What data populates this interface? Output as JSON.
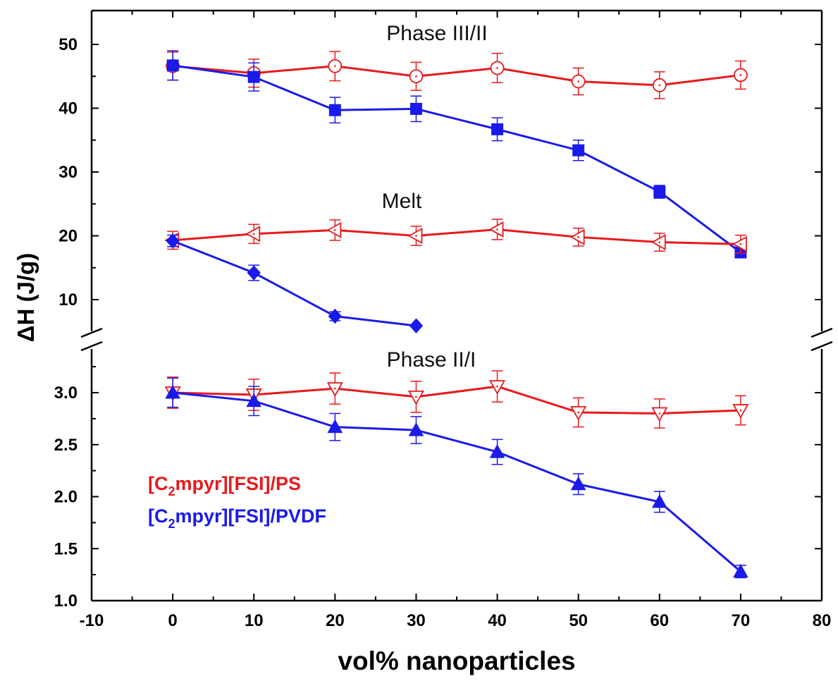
{
  "chart_data": {
    "type": "line",
    "xlabel": "vol% nanoparticles",
    "ylabel": "ΔH (J/g)",
    "xlim": [
      -10,
      80
    ],
    "x_ticks": [
      "-10",
      "0",
      "10",
      "20",
      "30",
      "40",
      "50",
      "60",
      "70",
      "80"
    ],
    "y_upper_range": [
      5,
      55
    ],
    "y_upper_ticks": [
      "10",
      "20",
      "30",
      "40",
      "50"
    ],
    "y_lower_range": [
      1.0,
      3.4
    ],
    "y_lower_ticks": [
      "1.0",
      "1.5",
      "2.0",
      "2.5",
      "3.0"
    ],
    "axis_break": true,
    "annotations": [
      "Phase III/II",
      "Melt",
      "Phase II/I"
    ],
    "legend": {
      "placement": "left-center",
      "entries": [
        {
          "prefix": "[C",
          "sub": "2",
          "suffix": "mpyr][FSI]/PS",
          "color": "#e8191c"
        },
        {
          "prefix": "[C",
          "sub": "2",
          "suffix": "mpyr][FSI]/PVDF",
          "color": "#1a1aeb"
        }
      ]
    },
    "series": [
      {
        "group": "Phase III/II",
        "material": "PS",
        "color": "#e8191c",
        "marker": "circle-open",
        "panel": "upper",
        "x": [
          0,
          10,
          20,
          30,
          40,
          50,
          60,
          70
        ],
        "y": [
          46.6,
          45.5,
          46.6,
          45.0,
          46.3,
          44.2,
          43.6,
          45.2
        ],
        "err": [
          2.2,
          2.2,
          2.3,
          2.2,
          2.3,
          2.1,
          2.1,
          2.2
        ]
      },
      {
        "group": "Phase III/II",
        "material": "PVDF",
        "color": "#1a1aeb",
        "marker": "square-filled",
        "panel": "upper",
        "x": [
          0,
          10,
          20,
          30,
          40,
          50,
          60,
          70
        ],
        "y": [
          46.7,
          44.9,
          39.7,
          39.9,
          36.7,
          33.4,
          26.9,
          17.4
        ],
        "err": [
          2.3,
          2.2,
          2.0,
          2.0,
          1.8,
          1.6,
          1.0,
          0.6
        ]
      },
      {
        "group": "Melt",
        "material": "PS",
        "color": "#e8191c",
        "marker": "triangle-left-open",
        "panel": "upper",
        "x": [
          0,
          10,
          20,
          30,
          40,
          50,
          60,
          70
        ],
        "y": [
          19.3,
          20.3,
          20.9,
          20.0,
          21.0,
          19.8,
          19.0,
          18.7
        ],
        "err": [
          1.4,
          1.5,
          1.6,
          1.5,
          1.6,
          1.4,
          1.4,
          1.4
        ]
      },
      {
        "group": "Melt",
        "material": "PVDF",
        "color": "#1a1aeb",
        "marker": "diamond-filled",
        "panel": "upper",
        "x": [
          0,
          10,
          20,
          30
        ],
        "y": [
          19.2,
          14.2,
          7.4,
          5.9
        ],
        "err": [
          0.9,
          1.2,
          0.7,
          0.0
        ]
      },
      {
        "group": "Phase II/I",
        "material": "PS",
        "color": "#e8191c",
        "marker": "triangle-down-open",
        "panel": "lower",
        "x": [
          0,
          10,
          20,
          30,
          40,
          50,
          60,
          70
        ],
        "y": [
          3.0,
          2.98,
          3.04,
          2.96,
          3.06,
          2.81,
          2.8,
          2.83
        ],
        "err": [
          0.15,
          0.15,
          0.15,
          0.15,
          0.15,
          0.14,
          0.14,
          0.14
        ]
      },
      {
        "group": "Phase II/I",
        "material": "PVDF",
        "color": "#1a1aeb",
        "marker": "triangle-up-filled",
        "panel": "lower",
        "x": [
          0,
          10,
          20,
          30,
          40,
          50,
          60,
          70
        ],
        "y": [
          3.0,
          2.92,
          2.67,
          2.64,
          2.43,
          2.12,
          1.95,
          1.28
        ],
        "err": [
          0.14,
          0.14,
          0.13,
          0.13,
          0.12,
          0.1,
          0.1,
          0.06
        ]
      }
    ]
  }
}
